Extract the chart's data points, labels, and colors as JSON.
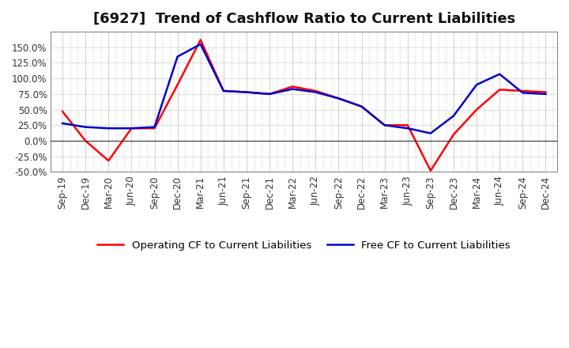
{
  "title": "[6927]  Trend of Cashflow Ratio to Current Liabilities",
  "x_labels": [
    "Sep-19",
    "Dec-19",
    "Mar-20",
    "Jun-20",
    "Sep-20",
    "Dec-20",
    "Mar-21",
    "Jun-21",
    "Sep-21",
    "Dec-21",
    "Mar-22",
    "Jun-22",
    "Sep-22",
    "Dec-22",
    "Mar-23",
    "Jun-23",
    "Sep-23",
    "Dec-23",
    "Mar-24",
    "Jun-24",
    "Sep-24",
    "Dec-24"
  ],
  "operating_cf": [
    0.47,
    0.0,
    -0.32,
    0.2,
    0.2,
    0.9,
    1.62,
    0.8,
    0.78,
    0.75,
    0.87,
    0.8,
    0.68,
    0.55,
    0.25,
    0.25,
    -0.48,
    0.1,
    0.5,
    0.82,
    0.8,
    0.78
  ],
  "free_cf": [
    0.28,
    0.22,
    0.2,
    0.2,
    0.22,
    1.35,
    1.55,
    0.8,
    0.78,
    0.75,
    0.83,
    0.78,
    0.68,
    0.55,
    0.25,
    0.2,
    0.12,
    0.4,
    0.9,
    1.07,
    0.77,
    0.75
  ],
  "operating_color": "#ff0000",
  "free_color": "#0000cc",
  "ylim": [
    -0.5,
    1.7
  ],
  "yticks": [
    -0.5,
    -0.25,
    0.0,
    0.25,
    0.5,
    0.75,
    1.0,
    1.25,
    1.5
  ],
  "ytick_labels": [
    "-50.0%",
    "-25.0%",
    "0.0%",
    "25.0%",
    "50.0%",
    "75.0%",
    "100.0%",
    "125.0%",
    "150.0%"
  ],
  "legend_operating": "Operating CF to Current Liabilities",
  "legend_free": "Free CF to Current Liabilities",
  "background_color": "#ffffff",
  "plot_bg_color": "#f0f0f0",
  "grid_color": "#888888",
  "title_fontsize": 13,
  "label_fontsize": 8.5,
  "legend_fontsize": 9.5,
  "line_width": 1.8
}
